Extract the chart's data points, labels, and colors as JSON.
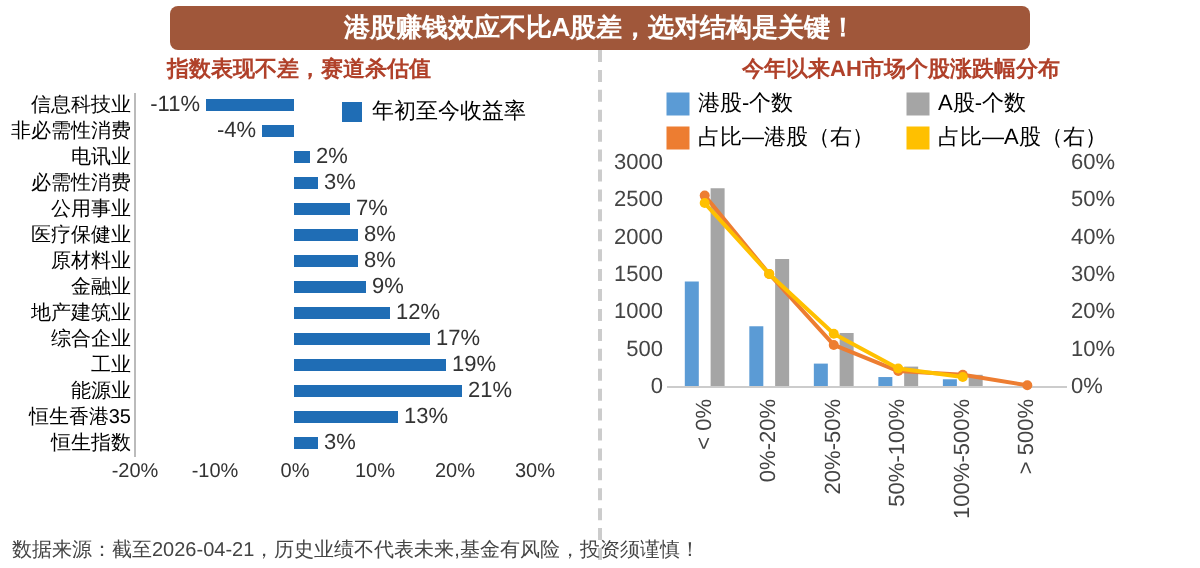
{
  "chart_data": [
    {
      "type": "bar",
      "orientation": "horizontal",
      "title": "港股赚钱效应不比A股差，选对结构是关键！",
      "subtitle": "指数表现不差，赛道杀估值",
      "categories": [
        "信息科技业",
        "非必需性消费",
        "电讯业",
        "必需性消费",
        "公用事业",
        "医疗保健业",
        "原材料业",
        "金融业",
        "地产建筑业",
        "综合企业",
        "工业",
        "能源业",
        "恒生香港35",
        "恒生指数"
      ],
      "series": [
        {
          "name": "年初至今收益率",
          "color": "#1f6db5",
          "values": [
            -11,
            -4,
            2,
            3,
            7,
            8,
            8,
            9,
            12,
            17,
            19,
            21,
            13,
            3
          ],
          "value_labels": [
            "-11%",
            "-4%",
            "2%",
            "3%",
            "7%",
            "8%",
            "8%",
            "9%",
            "12%",
            "17%",
            "19%",
            "21%",
            "13%",
            "3%"
          ]
        }
      ],
      "xlim": [
        -20,
        30
      ],
      "xticks": [
        {
          "value": -20,
          "label": "-20%"
        },
        {
          "value": -10,
          "label": "-10%"
        },
        {
          "value": 0,
          "label": "0%"
        },
        {
          "value": 10,
          "label": "10%"
        },
        {
          "value": 20,
          "label": "20%"
        },
        {
          "value": 30,
          "label": "30%"
        }
      ],
      "legend": "top right",
      "annotations": [
        "数据来源：截至2026-04-21，历史业绩不代表未来,基金有风险，投资须谨慎！"
      ]
    },
    {
      "type": "bar",
      "title": "今年以来AH市场个股涨跌幅分布",
      "categories": [
        "< 0%",
        "0%-20%",
        "20%-50%",
        "50%-100%",
        "100%-500%",
        "> 500%"
      ],
      "series": [
        {
          "name": "港股-个数",
          "color": "#5b9bd5",
          "values": [
            1400,
            800,
            300,
            120,
            90,
            0
          ]
        },
        {
          "name": "A股-个数",
          "color": "#a5a5a5",
          "values": [
            2650,
            1700,
            710,
            260,
            150,
            0
          ]
        },
        {
          "name": "占比—港股（右）",
          "type": "line",
          "axis": "y2",
          "color": "#ed7d31",
          "values": [
            51,
            30,
            11,
            4,
            3,
            0.2
          ]
        },
        {
          "name": "占比—A股（右）",
          "type": "line",
          "axis": "y2",
          "color": "#ffc000",
          "values": [
            49,
            30,
            14,
            4.7,
            2.4,
            null
          ]
        }
      ],
      "ylim": [
        0,
        3000
      ],
      "yticks": [
        0,
        500,
        1000,
        1500,
        2000,
        2500,
        3000
      ],
      "y2lim": [
        0,
        60
      ],
      "y2ticks": [
        {
          "value": 0,
          "label": "0%"
        },
        {
          "value": 10,
          "label": "10%"
        },
        {
          "value": 20,
          "label": "20%"
        },
        {
          "value": 30,
          "label": "30%"
        },
        {
          "value": 40,
          "label": "40%"
        },
        {
          "value": 50,
          "label": "50%"
        },
        {
          "value": 60,
          "label": "60%"
        }
      ],
      "marker": "circle",
      "legend": "top"
    }
  ]
}
